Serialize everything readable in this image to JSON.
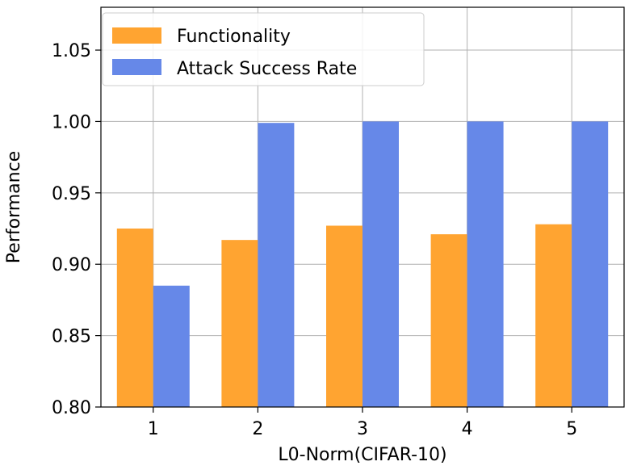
{
  "chart_data": {
    "type": "bar",
    "title": "",
    "xlabel": "L0-Norm(CIFAR-10)",
    "ylabel": "Performance",
    "categories": [
      "1",
      "2",
      "3",
      "4",
      "5"
    ],
    "ylim": [
      0.8,
      1.08
    ],
    "yticks": [
      0.8,
      0.85,
      0.9,
      0.95,
      1.0,
      1.05
    ],
    "ytick_labels": [
      "0.80",
      "0.85",
      "0.90",
      "0.95",
      "1.00",
      "1.05"
    ],
    "grid": true,
    "legend_position": "top-left",
    "series": [
      {
        "name": "Functionality",
        "color": "#ffa431",
        "values": [
          0.925,
          0.917,
          0.927,
          0.921,
          0.928
        ]
      },
      {
        "name": "Attack Success Rate",
        "color": "#6688e8",
        "values": [
          0.885,
          0.999,
          1.0,
          1.0,
          1.0
        ]
      }
    ]
  }
}
